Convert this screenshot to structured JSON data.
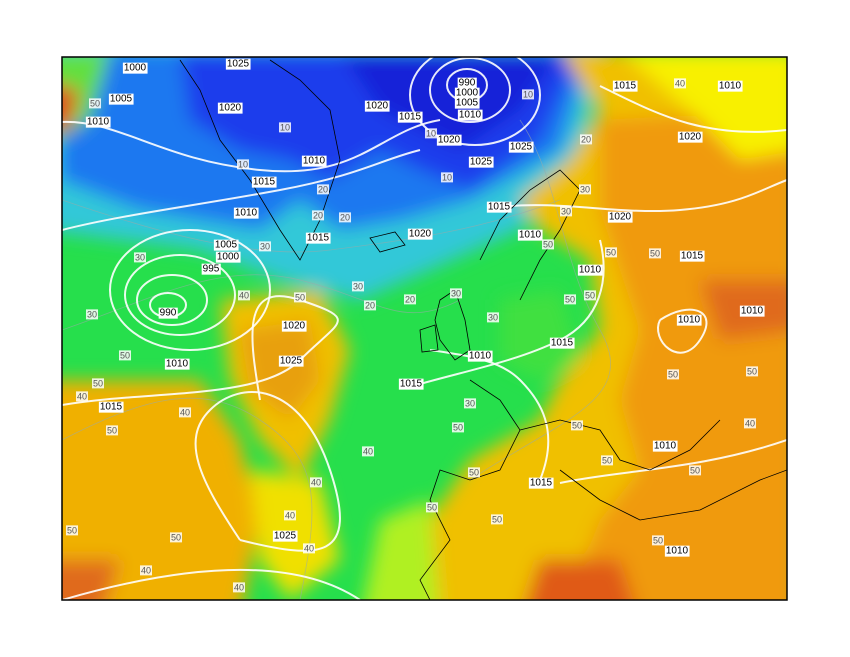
{
  "map": {
    "isobar_labels": [
      "1000",
      "1005",
      "1010",
      "1025",
      "1020",
      "1020",
      "1015",
      "990",
      "1000",
      "1005",
      "1010",
      "1020",
      "1025",
      "1025",
      "1015",
      "1010",
      "1020",
      "1010",
      "1015",
      "1010",
      "1015",
      "1020",
      "1015",
      "1010",
      "1020",
      "1010",
      "1015",
      "1005",
      "1000",
      "995",
      "990",
      "1020",
      "1025",
      "1010",
      "1010",
      "1015",
      "1010",
      "1010",
      "1015",
      "1015",
      "1010",
      "1015",
      "1025",
      "1010"
    ],
    "thickness_labels": [
      "50",
      "30",
      "30",
      "50",
      "50",
      "40",
      "40",
      "50",
      "40",
      "50",
      "30",
      "20",
      "20",
      "30",
      "30",
      "50",
      "50",
      "30",
      "50",
      "40",
      "40",
      "40",
      "40",
      "50",
      "40",
      "40",
      "50",
      "50",
      "50",
      "50",
      "40",
      "50",
      "50",
      "50",
      "50",
      "50",
      "30",
      "30",
      "40",
      "30",
      "20",
      "20",
      "20",
      "10",
      "10",
      "10",
      "10",
      "20",
      "10",
      "50",
      "50",
      "50",
      "50"
    ]
  }
}
